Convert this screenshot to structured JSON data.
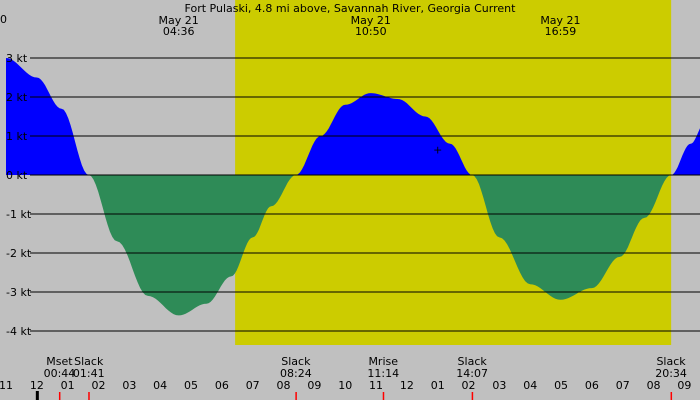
{
  "chart_data": {
    "type": "area",
    "title": "Fort Pulaski, 4.8 mi above, Savannah River, Georgia Current",
    "title_prefix": "0",
    "ylabel": "",
    "y_unit": "kt",
    "ylim": [
      -4.5,
      4.5
    ],
    "xlim_hours": [
      -1.0,
      21.7
    ],
    "grid": true,
    "colors": {
      "background": "#c0c0c0",
      "daylight": "#cccc00",
      "flood": "#0000ff",
      "ebb": "#2e8b57",
      "grid": "#000000",
      "marker_red": "#ff0000",
      "marker_black": "#000000"
    },
    "y_ticks": [
      {
        "value": 3,
        "label": "3 kt"
      },
      {
        "value": 2,
        "label": "2 kt"
      },
      {
        "value": 1,
        "label": "1 kt"
      },
      {
        "value": 0,
        "label": "0 kt"
      },
      {
        "value": -1,
        "label": "-1 kt"
      },
      {
        "value": -2,
        "label": "-2 kt"
      },
      {
        "value": -3,
        "label": "-3 kt"
      },
      {
        "value": -4,
        "label": "-4 kt"
      }
    ],
    "x_ticks": [
      {
        "hour": -1,
        "label": "11"
      },
      {
        "hour": 0,
        "label": "12"
      },
      {
        "hour": 1,
        "label": "01"
      },
      {
        "hour": 2,
        "label": "02"
      },
      {
        "hour": 3,
        "label": "03"
      },
      {
        "hour": 4,
        "label": "04"
      },
      {
        "hour": 5,
        "label": "05"
      },
      {
        "hour": 6,
        "label": "06"
      },
      {
        "hour": 7,
        "label": "07"
      },
      {
        "hour": 8,
        "label": "08"
      },
      {
        "hour": 9,
        "label": "09"
      },
      {
        "hour": 10,
        "label": "10"
      },
      {
        "hour": 11,
        "label": "11"
      },
      {
        "hour": 12,
        "label": "12"
      },
      {
        "hour": 13,
        "label": "01"
      },
      {
        "hour": 14,
        "label": "02"
      },
      {
        "hour": 15,
        "label": "03"
      },
      {
        "hour": 16,
        "label": "04"
      },
      {
        "hour": 17,
        "label": "05"
      },
      {
        "hour": 18,
        "label": "06"
      },
      {
        "hour": 19,
        "label": "07"
      },
      {
        "hour": 20,
        "label": "08"
      },
      {
        "hour": 21,
        "label": "09"
      }
    ],
    "daylight": {
      "start_hour": 6.43,
      "end_hour": 20.57
    },
    "peaks": [
      {
        "hour": 4.6,
        "date": "May 21",
        "time": "04:36",
        "value": -3.6
      },
      {
        "hour": 10.83,
        "date": "May 21",
        "time": "10:50",
        "value": 2.1
      },
      {
        "hour": 16.98,
        "date": "May 21",
        "time": "16:59",
        "value": -3.2
      }
    ],
    "series": [
      {
        "x": [
          -1.0,
          0.0,
          0.8,
          1.683,
          2.6,
          3.6,
          4.6,
          5.5,
          6.3,
          7.0,
          7.6,
          8.4,
          9.2,
          10.0,
          10.83,
          11.7,
          12.6,
          13.4,
          14.117,
          15.0,
          16.0,
          16.98,
          18.0,
          18.9,
          19.7,
          20.567,
          21.2,
          21.7
        ],
        "y": [
          3.0,
          2.5,
          1.7,
          0.0,
          -1.7,
          -3.1,
          -3.6,
          -3.3,
          -2.6,
          -1.6,
          -0.8,
          0.0,
          1.0,
          1.8,
          2.1,
          1.95,
          1.5,
          0.8,
          0.0,
          -1.6,
          -2.8,
          -3.2,
          -2.9,
          -2.1,
          -1.1,
          0.0,
          0.8,
          1.4
        ]
      }
    ],
    "events": [
      {
        "label": "Mset",
        "time": "00:44",
        "hour": 0.733,
        "marker": "red"
      },
      {
        "label": "Slack",
        "time": "01:41",
        "hour": 1.683,
        "marker": "red"
      },
      {
        "label": "Slack",
        "time": "08:24",
        "hour": 8.4,
        "marker": "red"
      },
      {
        "label": "Mrise",
        "time": "11:14",
        "hour": 11.233,
        "marker": "red"
      },
      {
        "label": "Slack",
        "time": "14:07",
        "hour": 14.117,
        "marker": "red"
      },
      {
        "label": "Slack",
        "time": "20:34",
        "hour": 20.567,
        "marker": "red"
      }
    ],
    "midnight_marker_hour": 0.0,
    "current_marker": {
      "hour": 13.0,
      "value": 0.65,
      "symbol": "+"
    }
  }
}
